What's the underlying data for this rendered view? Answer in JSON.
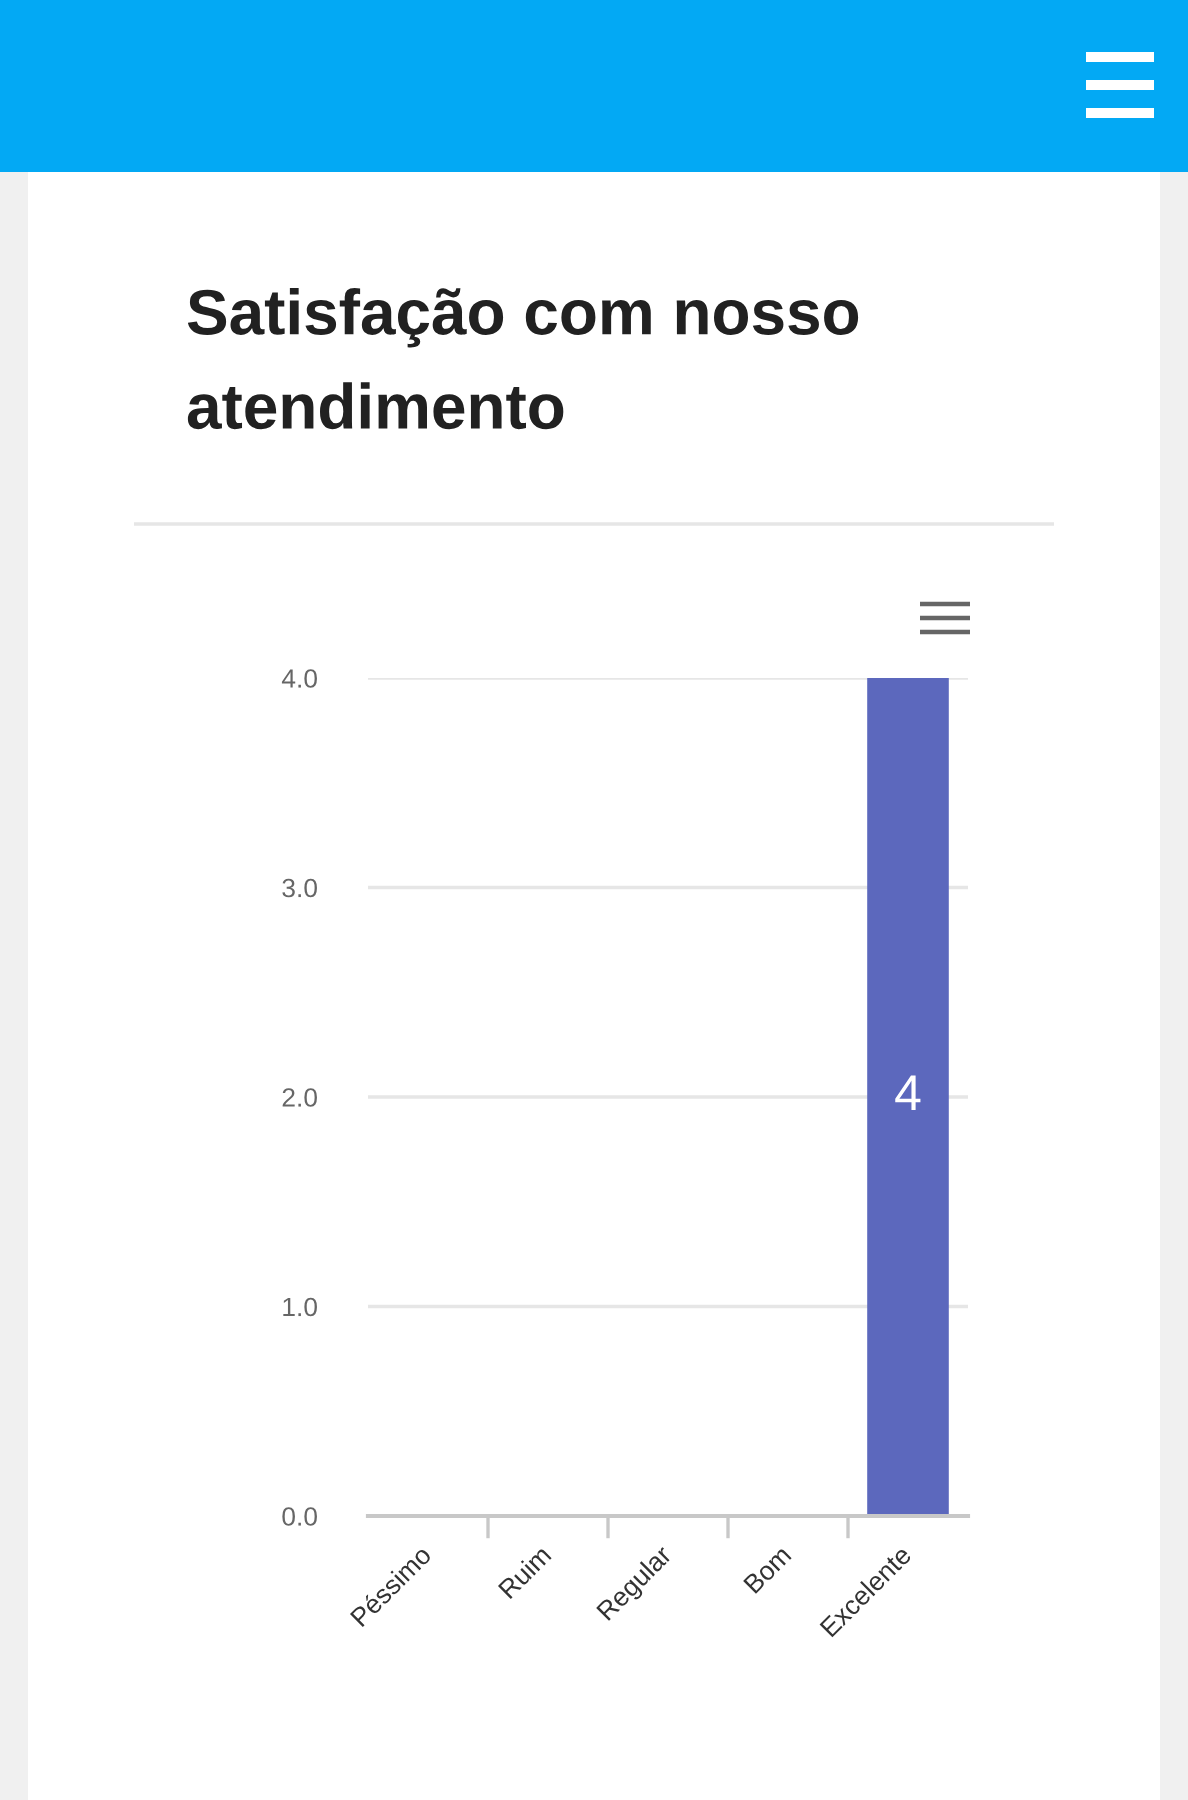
{
  "chart_data": {
    "type": "bar",
    "title": "Satisfação com nosso atendimento",
    "categories": [
      "Péssimo",
      "Ruim",
      "Regular",
      "Bom",
      "Excelente"
    ],
    "values": [
      0,
      0,
      0,
      0,
      4
    ],
    "color": "#5c68bd",
    "value_labels": [
      null,
      null,
      null,
      null,
      "4"
    ],
    "ylim": [
      0,
      4
    ],
    "yticks": [
      {
        "value": 0,
        "label": "0.0"
      },
      {
        "value": 1,
        "label": "1.0"
      },
      {
        "value": 2,
        "label": "2.0"
      },
      {
        "value": 3,
        "label": "3.0"
      },
      {
        "value": 4,
        "label": "4.0"
      }
    ],
    "grid": "y"
  }
}
